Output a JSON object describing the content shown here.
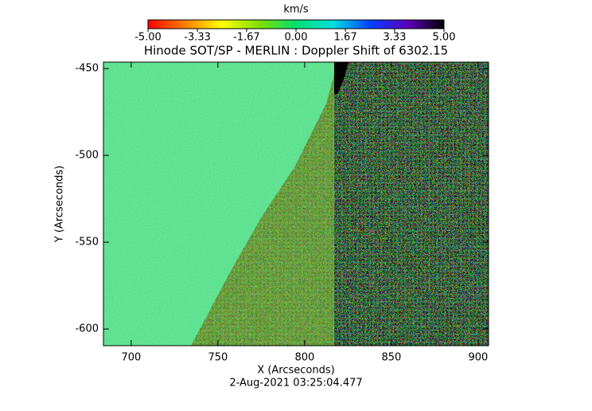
{
  "chart_data": {
    "type": "heatmap",
    "title": "Hinode SOT/SP - MERLIN : Doppler Shift of 6302.15",
    "subtitle": "2-Aug-2021 03:25:04.477",
    "x_label": "X (Arcseconds)",
    "y_label": "Y (Arcseconds)",
    "xlim": [
      684,
      906
    ],
    "ylim": [
      -609.6,
      -446.3
    ],
    "xticks": [
      700,
      750,
      800,
      850,
      900
    ],
    "yticks": [
      -450,
      -500,
      -550,
      -600
    ],
    "colorbar": {
      "label": "km/s",
      "lim": [
        -5,
        5
      ],
      "ticks": [
        {
          "value": -5,
          "label": "-5.00"
        },
        {
          "value": -3.33,
          "label": "-3.33"
        },
        {
          "value": -1.67,
          "label": "-1.67"
        },
        {
          "value": 0,
          "label": "0.00"
        },
        {
          "value": 1.67,
          "label": "1.67"
        },
        {
          "value": 3.33,
          "label": "3.33"
        },
        {
          "value": 5,
          "label": "5.00"
        }
      ],
      "colormap": [
        "#ff0000",
        "#ff8000",
        "#ffff00",
        "#80e000",
        "#00e070",
        "#00e0e0",
        "#0040ff",
        "#6000c0",
        "#000000"
      ]
    }
  }
}
